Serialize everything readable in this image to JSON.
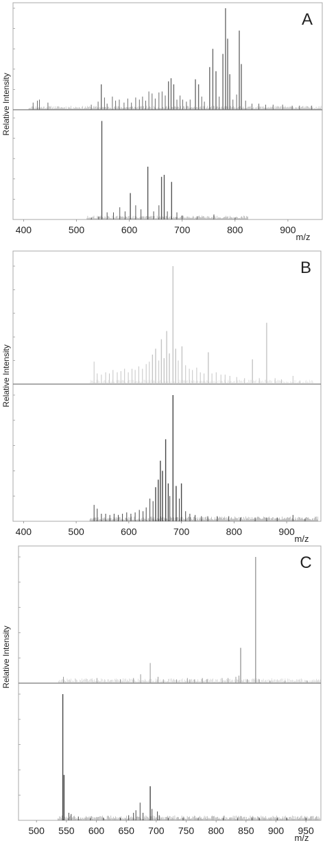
{
  "ylabel": "Relative Intensity",
  "xlabel": "m/z",
  "chart_data": [
    {
      "panel": "A",
      "type": "line",
      "xlim": [
        380,
        965
      ],
      "xticks": [
        400,
        500,
        600,
        700,
        800,
        900
      ],
      "xlabel": "m/z",
      "ylabel": "Relative Intensity",
      "series": [
        {
          "role": "upper",
          "color": "#6a6a6a",
          "peaks": [
            [
              418,
              0.07
            ],
            [
              426,
              0.09
            ],
            [
              430,
              0.1
            ],
            [
              446,
              0.07
            ],
            [
              528,
              0.05
            ],
            [
              541,
              0.08
            ],
            [
              547,
              0.25
            ],
            [
              553,
              0.12
            ],
            [
              558,
              0.06
            ],
            [
              568,
              0.13
            ],
            [
              574,
              0.09
            ],
            [
              581,
              0.1
            ],
            [
              590,
              0.07
            ],
            [
              597,
              0.11
            ],
            [
              604,
              0.07
            ],
            [
              612,
              0.12
            ],
            [
              619,
              0.1
            ],
            [
              625,
              0.13
            ],
            [
              631,
              0.09
            ],
            [
              637,
              0.18
            ],
            [
              643,
              0.16
            ],
            [
              649,
              0.11
            ],
            [
              656,
              0.17
            ],
            [
              662,
              0.18
            ],
            [
              668,
              0.14
            ],
            [
              674,
              0.28
            ],
            [
              679,
              0.31
            ],
            [
              684,
              0.25
            ],
            [
              690,
              0.1
            ],
            [
              696,
              0.14
            ],
            [
              701,
              0.1
            ],
            [
              708,
              0.08
            ],
            [
              715,
              0.1
            ],
            [
              725,
              0.3
            ],
            [
              731,
              0.25
            ],
            [
              737,
              0.13
            ],
            [
              742,
              0.08
            ],
            [
              752,
              0.42
            ],
            [
              758,
              0.6
            ],
            [
              764,
              0.38
            ],
            [
              770,
              0.13
            ],
            [
              777,
              0.55
            ],
            [
              782,
              1.0
            ],
            [
              786,
              0.7
            ],
            [
              790,
              0.35
            ],
            [
              796,
              0.1
            ],
            [
              803,
              0.15
            ],
            [
              808,
              0.78
            ],
            [
              812,
              0.45
            ],
            [
              820,
              0.09
            ],
            [
              832,
              0.06
            ],
            [
              845,
              0.06
            ],
            [
              858,
              0.05
            ],
            [
              872,
              0.05
            ],
            [
              890,
              0.05
            ],
            [
              908,
              0.04
            ],
            [
              922,
              0.04
            ],
            [
              945,
              0.04
            ]
          ]
        },
        {
          "role": "lower",
          "color": "#555555",
          "peaks": [
            [
              528,
              0.02
            ],
            [
              542,
              0.03
            ],
            [
              548,
              0.97
            ],
            [
              558,
              0.07
            ],
            [
              570,
              0.07
            ],
            [
              582,
              0.12
            ],
            [
              592,
              0.08
            ],
            [
              602,
              0.26
            ],
            [
              612,
              0.14
            ],
            [
              622,
              0.1
            ],
            [
              635,
              0.52
            ],
            [
              646,
              0.08
            ],
            [
              656,
              0.14
            ],
            [
              661,
              0.42
            ],
            [
              666,
              0.44
            ],
            [
              672,
              0.08
            ],
            [
              680,
              0.37
            ],
            [
              690,
              0.07
            ],
            [
              700,
              0.04
            ],
            [
              728,
              0.03
            ],
            [
              760,
              0.05
            ],
            [
              800,
              0.02
            ]
          ]
        }
      ]
    },
    {
      "panel": "B",
      "type": "line",
      "xlim": [
        380,
        965
      ],
      "xticks": [
        400,
        500,
        600,
        700,
        800,
        900
      ],
      "xlabel": "m/z",
      "ylabel": "Relative Intensity",
      "series": [
        {
          "role": "upper",
          "color": "#c4c4c4",
          "peaks": [
            [
              534,
              0.19
            ],
            [
              540,
              0.09
            ],
            [
              548,
              0.08
            ],
            [
              556,
              0.1
            ],
            [
              563,
              0.09
            ],
            [
              570,
              0.12
            ],
            [
              578,
              0.1
            ],
            [
              585,
              0.11
            ],
            [
              592,
              0.13
            ],
            [
              599,
              0.1
            ],
            [
              606,
              0.13
            ],
            [
              612,
              0.12
            ],
            [
              619,
              0.15
            ],
            [
              626,
              0.13
            ],
            [
              633,
              0.17
            ],
            [
              639,
              0.19
            ],
            [
              645,
              0.25
            ],
            [
              651,
              0.3
            ],
            [
              657,
              0.2
            ],
            [
              662,
              0.38
            ],
            [
              667,
              0.22
            ],
            [
              672,
              0.45
            ],
            [
              677,
              0.26
            ],
            [
              684,
              1.0
            ],
            [
              689,
              0.3
            ],
            [
              694,
              0.2
            ],
            [
              701,
              0.32
            ],
            [
              708,
              0.16
            ],
            [
              715,
              0.13
            ],
            [
              721,
              0.12
            ],
            [
              729,
              0.14
            ],
            [
              736,
              0.1
            ],
            [
              743,
              0.09
            ],
            [
              751,
              0.27
            ],
            [
              758,
              0.09
            ],
            [
              766,
              0.1
            ],
            [
              775,
              0.08
            ],
            [
              783,
              0.08
            ],
            [
              792,
              0.07
            ],
            [
              805,
              0.06
            ],
            [
              820,
              0.05
            ],
            [
              835,
              0.21
            ],
            [
              848,
              0.05
            ],
            [
              862,
              0.52
            ],
            [
              878,
              0.05
            ],
            [
              890,
              0.04
            ],
            [
              912,
              0.07
            ],
            [
              925,
              0.03
            ]
          ]
        },
        {
          "role": "lower",
          "color": "#454545",
          "peaks": [
            [
              534,
              0.13
            ],
            [
              540,
              0.1
            ],
            [
              548,
              0.06
            ],
            [
              556,
              0.06
            ],
            [
              564,
              0.05
            ],
            [
              572,
              0.06
            ],
            [
              580,
              0.05
            ],
            [
              588,
              0.06
            ],
            [
              596,
              0.07
            ],
            [
              604,
              0.06
            ],
            [
              612,
              0.07
            ],
            [
              620,
              0.09
            ],
            [
              627,
              0.08
            ],
            [
              633,
              0.11
            ],
            [
              640,
              0.18
            ],
            [
              646,
              0.16
            ],
            [
              651,
              0.27
            ],
            [
              656,
              0.33
            ],
            [
              660,
              0.48
            ],
            [
              664,
              0.4
            ],
            [
              670,
              0.65
            ],
            [
              675,
              0.3
            ],
            [
              678,
              0.2
            ],
            [
              684,
              1.0
            ],
            [
              690,
              0.28
            ],
            [
              696,
              0.18
            ],
            [
              700,
              0.3
            ],
            [
              708,
              0.08
            ],
            [
              716,
              0.06
            ],
            [
              726,
              0.05
            ],
            [
              738,
              0.04
            ],
            [
              750,
              0.04
            ],
            [
              768,
              0.04
            ],
            [
              790,
              0.04
            ],
            [
              812,
              0.03
            ],
            [
              840,
              0.03
            ],
            [
              862,
              0.03
            ],
            [
              882,
              0.03
            ],
            [
              912,
              0.05
            ],
            [
              935,
              0.02
            ]
          ]
        }
      ]
    },
    {
      "panel": "C",
      "type": "line",
      "xlim": [
        470,
        975
      ],
      "xticks": [
        500,
        550,
        600,
        650,
        700,
        750,
        800,
        850,
        900,
        950
      ],
      "xlabel": "m/z",
      "ylabel": "Relative Intensity",
      "series": [
        {
          "role": "upper",
          "color": "#9a9a9a",
          "peaks": [
            [
              545,
              0.05
            ],
            [
              601,
              0.04
            ],
            [
              640,
              0.03
            ],
            [
              662,
              0.04
            ],
            [
              674,
              0.07
            ],
            [
              690,
              0.16
            ],
            [
              703,
              0.05
            ],
            [
              712,
              0.03
            ],
            [
              734,
              0.03
            ],
            [
              752,
              0.04
            ],
            [
              756,
              0.03
            ],
            [
              764,
              0.03
            ],
            [
              777,
              0.04
            ],
            [
              785,
              0.03
            ],
            [
              810,
              0.04
            ],
            [
              820,
              0.04
            ],
            [
              833,
              0.05
            ],
            [
              838,
              0.06
            ],
            [
              841,
              0.28
            ],
            [
              852,
              0.03
            ],
            [
              866,
              1.0
            ],
            [
              872,
              0.03
            ],
            [
              890,
              0.02
            ],
            [
              915,
              0.02
            ],
            [
              952,
              0.02
            ]
          ]
        },
        {
          "role": "lower",
          "color": "#454545",
          "peaks": [
            [
              544,
              1.0
            ],
            [
              546,
              0.36
            ],
            [
              554,
              0.06
            ],
            [
              558,
              0.05
            ],
            [
              570,
              0.03
            ],
            [
              590,
              0.02
            ],
            [
              612,
              0.02
            ],
            [
              640,
              0.02
            ],
            [
              654,
              0.04
            ],
            [
              662,
              0.06
            ],
            [
              666,
              0.08
            ],
            [
              673,
              0.14
            ],
            [
              678,
              0.06
            ],
            [
              690,
              0.27
            ],
            [
              693,
              0.09
            ],
            [
              702,
              0.07
            ],
            [
              705,
              0.04
            ],
            [
              720,
              0.02
            ],
            [
              745,
              0.02
            ],
            [
              770,
              0.02
            ],
            [
              812,
              0.02
            ],
            [
              836,
              0.02
            ],
            [
              860,
              0.02
            ],
            [
              872,
              0.02
            ],
            [
              902,
              0.02
            ],
            [
              918,
              0.02
            ],
            [
              950,
              0.02
            ]
          ]
        }
      ]
    }
  ]
}
